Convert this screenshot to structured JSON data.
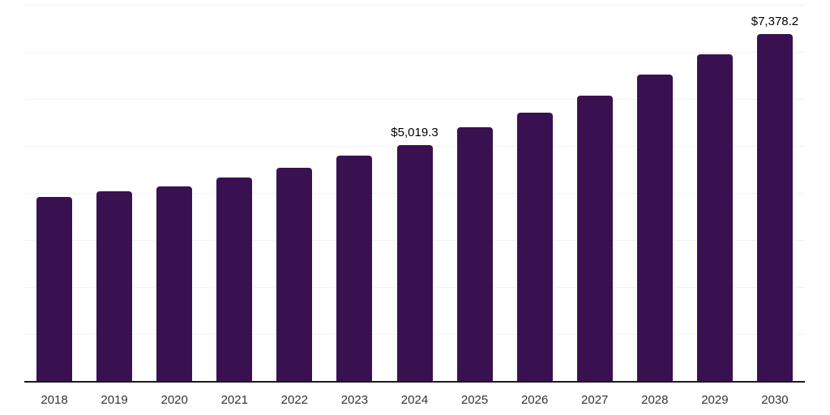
{
  "chart_data": {
    "type": "bar",
    "categories": [
      "2018",
      "2019",
      "2020",
      "2021",
      "2022",
      "2023",
      "2024",
      "2025",
      "2026",
      "2027",
      "2028",
      "2029",
      "2030"
    ],
    "values": [
      3910,
      4030,
      4130,
      4330,
      4540,
      4790,
      5019.3,
      5390,
      5700,
      6070,
      6510,
      6950,
      7378.2
    ],
    "data_labels": [
      "",
      "",
      "",
      "",
      "",
      "",
      "$5,019.3",
      "",
      "",
      "",
      "",
      "",
      "$7,378.2"
    ],
    "title": "",
    "xlabel": "",
    "ylabel": "",
    "ylim": [
      0,
      8000
    ],
    "grid": "horizontal",
    "grid_step": 1000,
    "legend": "none"
  },
  "colors": {
    "bar": "#3a1150",
    "gridline": "#f2f2f2",
    "axis_line": "#1a1a1a",
    "x_label_text": "#333333",
    "value_label_text": "#000000",
    "background": "#ffffff"
  }
}
